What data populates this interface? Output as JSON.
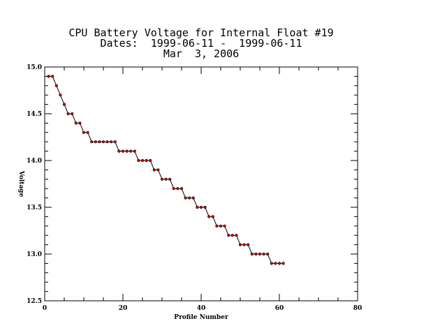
{
  "chart_data": {
    "type": "line",
    "title_lines": [
      "CPU Battery Voltage for Internal Float #19",
      "Dates:  1999-06-11 -  1999-06-11",
      "Mar  3, 2006"
    ],
    "xlabel": "Profile Number",
    "ylabel": "Voltage",
    "xlim": [
      0,
      80
    ],
    "ylim": [
      12.5,
      15.0
    ],
    "xticks": [
      0,
      20,
      40,
      60,
      80
    ],
    "xtick_labels": [
      "0",
      "20",
      "40",
      "60",
      "80"
    ],
    "yticks": [
      12.5,
      13.0,
      13.5,
      14.0,
      14.5,
      15.0
    ],
    "ytick_labels": [
      "12.5",
      "13.0",
      "13.5",
      "14.0",
      "14.5",
      "15.0"
    ],
    "grid": false,
    "series": [
      {
        "line_color": "#000000",
        "marker_color": "#cc0000",
        "x": [
          1,
          2,
          3,
          4,
          5,
          6,
          7,
          8,
          9,
          10,
          11,
          12,
          13,
          14,
          15,
          16,
          17,
          18,
          19,
          20,
          21,
          22,
          23,
          24,
          25,
          26,
          27,
          28,
          29,
          30,
          31,
          32,
          33,
          34,
          35,
          36,
          37,
          38,
          39,
          40,
          41,
          42,
          43,
          44,
          45,
          46,
          47,
          48,
          49,
          50,
          51,
          52,
          53,
          54,
          55,
          56,
          57,
          58,
          59,
          60,
          61
        ],
        "y": [
          14.9,
          14.9,
          14.8,
          14.7,
          14.6,
          14.5,
          14.5,
          14.4,
          14.4,
          14.3,
          14.3,
          14.2,
          14.2,
          14.2,
          14.2,
          14.2,
          14.2,
          14.2,
          14.1,
          14.1,
          14.1,
          14.1,
          14.1,
          14.0,
          14.0,
          14.0,
          14.0,
          13.9,
          13.9,
          13.8,
          13.8,
          13.8,
          13.7,
          13.7,
          13.7,
          13.6,
          13.6,
          13.6,
          13.5,
          13.5,
          13.5,
          13.4,
          13.4,
          13.3,
          13.3,
          13.3,
          13.2,
          13.2,
          13.2,
          13.1,
          13.1,
          13.1,
          13.0,
          13.0,
          13.0,
          13.0,
          13.0,
          12.9,
          12.9,
          12.9,
          12.9
        ]
      }
    ]
  }
}
